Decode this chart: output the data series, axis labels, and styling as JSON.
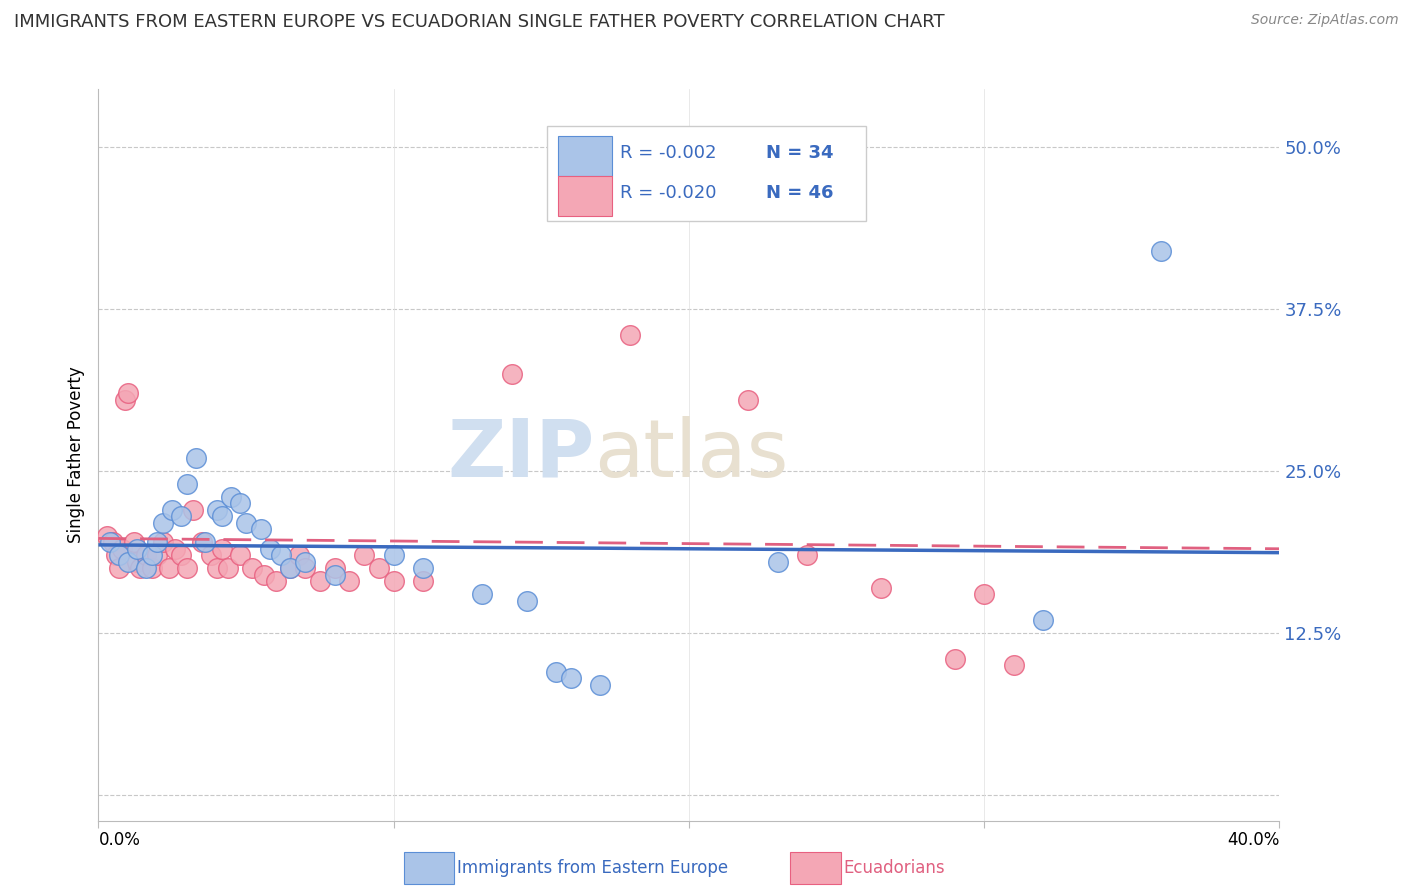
{
  "title": "IMMIGRANTS FROM EASTERN EUROPE VS ECUADORIAN SINGLE FATHER POVERTY CORRELATION CHART",
  "source": "Source: ZipAtlas.com",
  "ylabel": "Single Father Poverty",
  "yticks": [
    0.0,
    0.125,
    0.25,
    0.375,
    0.5
  ],
  "ytick_labels": [
    "",
    "12.5%",
    "25.0%",
    "37.5%",
    "50.0%"
  ],
  "xlim": [
    0.0,
    0.4
  ],
  "ylim": [
    -0.02,
    0.545
  ],
  "xtick_positions": [
    0.0,
    0.1,
    0.2,
    0.3,
    0.4
  ],
  "legend_r1": "-0.002",
  "legend_n1": "34",
  "legend_r2": "-0.020",
  "legend_n2": "46",
  "blue_fill": "#aac4e8",
  "blue_edge": "#5b8ed6",
  "pink_fill": "#f4a7b5",
  "pink_edge": "#e86080",
  "line_blue": "#3a6abf",
  "line_pink": "#e06080",
  "blue_scatter": [
    [
      0.004,
      0.195
    ],
    [
      0.007,
      0.185
    ],
    [
      0.01,
      0.18
    ],
    [
      0.013,
      0.19
    ],
    [
      0.016,
      0.175
    ],
    [
      0.018,
      0.185
    ],
    [
      0.02,
      0.195
    ],
    [
      0.022,
      0.21
    ],
    [
      0.025,
      0.22
    ],
    [
      0.028,
      0.215
    ],
    [
      0.03,
      0.24
    ],
    [
      0.033,
      0.26
    ],
    [
      0.036,
      0.195
    ],
    [
      0.04,
      0.22
    ],
    [
      0.042,
      0.215
    ],
    [
      0.045,
      0.23
    ],
    [
      0.048,
      0.225
    ],
    [
      0.05,
      0.21
    ],
    [
      0.055,
      0.205
    ],
    [
      0.058,
      0.19
    ],
    [
      0.062,
      0.185
    ],
    [
      0.065,
      0.175
    ],
    [
      0.07,
      0.18
    ],
    [
      0.08,
      0.17
    ],
    [
      0.1,
      0.185
    ],
    [
      0.11,
      0.175
    ],
    [
      0.13,
      0.155
    ],
    [
      0.145,
      0.15
    ],
    [
      0.155,
      0.095
    ],
    [
      0.16,
      0.09
    ],
    [
      0.17,
      0.085
    ],
    [
      0.23,
      0.18
    ],
    [
      0.32,
      0.135
    ],
    [
      0.36,
      0.42
    ]
  ],
  "pink_scatter": [
    [
      0.003,
      0.2
    ],
    [
      0.005,
      0.195
    ],
    [
      0.006,
      0.185
    ],
    [
      0.007,
      0.175
    ],
    [
      0.008,
      0.19
    ],
    [
      0.009,
      0.305
    ],
    [
      0.01,
      0.31
    ],
    [
      0.012,
      0.195
    ],
    [
      0.013,
      0.18
    ],
    [
      0.014,
      0.175
    ],
    [
      0.016,
      0.185
    ],
    [
      0.018,
      0.175
    ],
    [
      0.02,
      0.185
    ],
    [
      0.022,
      0.195
    ],
    [
      0.024,
      0.175
    ],
    [
      0.026,
      0.19
    ],
    [
      0.028,
      0.185
    ],
    [
      0.03,
      0.175
    ],
    [
      0.032,
      0.22
    ],
    [
      0.035,
      0.195
    ],
    [
      0.038,
      0.185
    ],
    [
      0.04,
      0.175
    ],
    [
      0.042,
      0.19
    ],
    [
      0.044,
      0.175
    ],
    [
      0.048,
      0.185
    ],
    [
      0.052,
      0.175
    ],
    [
      0.056,
      0.17
    ],
    [
      0.06,
      0.165
    ],
    [
      0.065,
      0.175
    ],
    [
      0.068,
      0.185
    ],
    [
      0.07,
      0.175
    ],
    [
      0.075,
      0.165
    ],
    [
      0.08,
      0.175
    ],
    [
      0.085,
      0.165
    ],
    [
      0.09,
      0.185
    ],
    [
      0.095,
      0.175
    ],
    [
      0.1,
      0.165
    ],
    [
      0.11,
      0.165
    ],
    [
      0.14,
      0.325
    ],
    [
      0.18,
      0.355
    ],
    [
      0.22,
      0.305
    ],
    [
      0.24,
      0.185
    ],
    [
      0.265,
      0.16
    ],
    [
      0.29,
      0.105
    ],
    [
      0.3,
      0.155
    ],
    [
      0.31,
      0.1
    ]
  ],
  "blue_trend": [
    0.0,
    0.4,
    0.193,
    0.187
  ],
  "pink_trend": [
    0.0,
    0.4,
    0.198,
    0.19
  ]
}
